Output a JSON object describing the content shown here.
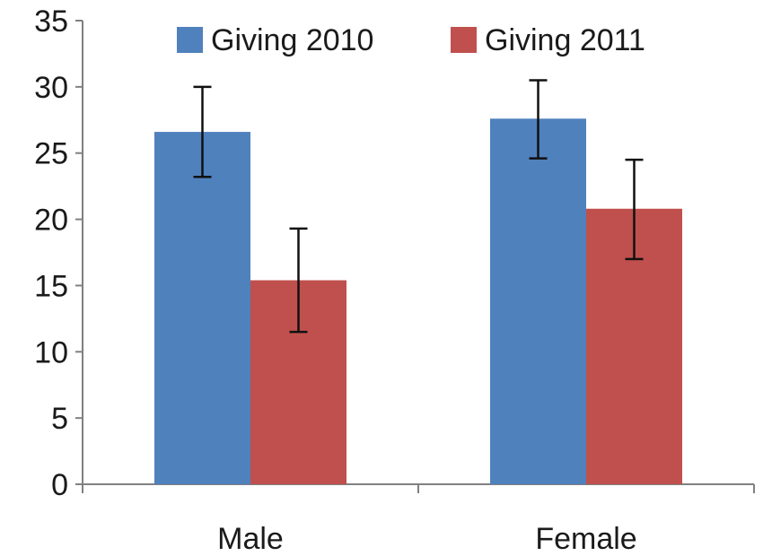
{
  "chart_data": {
    "type": "bar",
    "title": "",
    "xlabel": "",
    "ylabel": "",
    "ylim": [
      0,
      35
    ],
    "yticks": [
      0,
      5,
      10,
      15,
      20,
      25,
      30,
      35
    ],
    "categories": [
      "Male",
      "Female"
    ],
    "series": [
      {
        "name": "Giving 2010",
        "color": "#4f81bd",
        "values": [
          26.6,
          27.6
        ],
        "error_low": [
          23.2,
          24.6
        ],
        "error_high": [
          30.0,
          30.5
        ]
      },
      {
        "name": "Giving 2011",
        "color": "#c0504d",
        "values": [
          15.4,
          20.8
        ],
        "error_low": [
          11.5,
          17.0
        ],
        "error_high": [
          19.3,
          24.5
        ]
      }
    ],
    "legend_position": "top",
    "grid": false
  }
}
